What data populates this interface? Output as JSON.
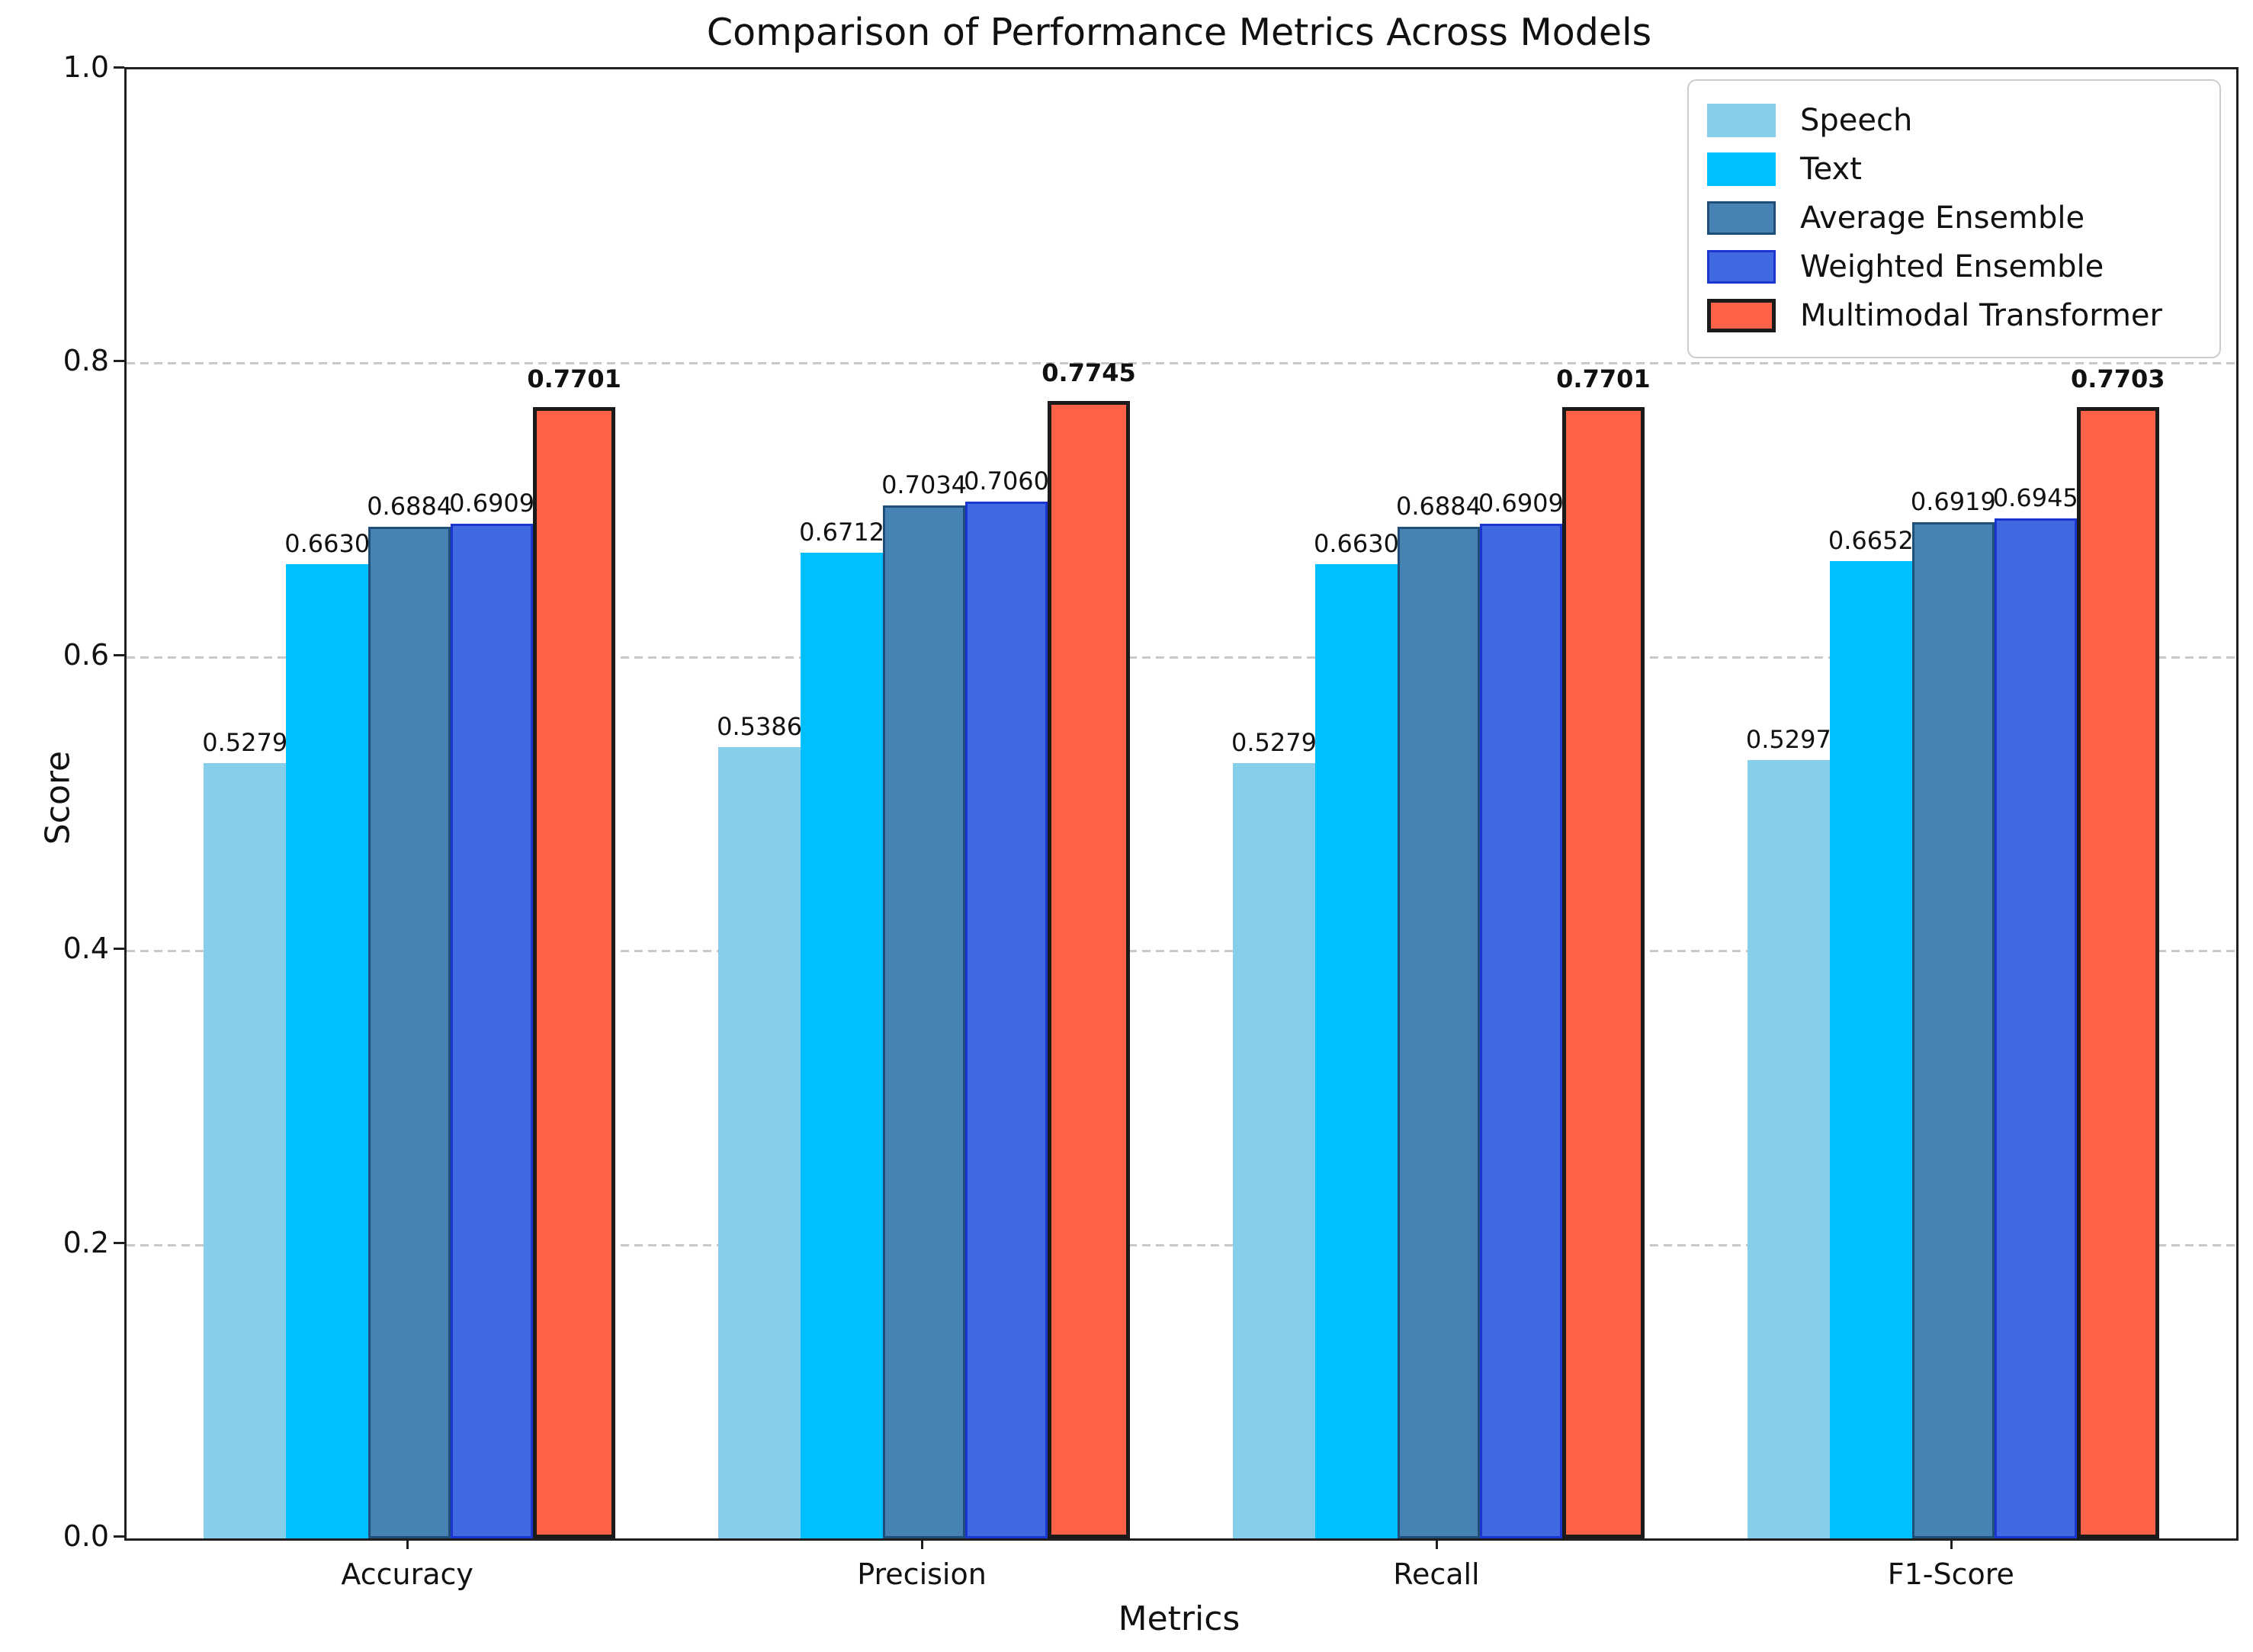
{
  "chart_data": {
    "type": "bar",
    "title": "Comparison of Performance Metrics Across Models",
    "xlabel": "Metrics",
    "ylabel": "Score",
    "categories": [
      "Accuracy",
      "Precision",
      "Recall",
      "F1-Score"
    ],
    "series": [
      {
        "name": "Speech",
        "color": "#87CEEB",
        "edge_color": "",
        "edge_width": 0,
        "bold_labels": false,
        "values": [
          0.5279,
          0.5386,
          0.5279,
          0.5297
        ],
        "value_labels": [
          "0.5279",
          "0.5386",
          "0.5279",
          "0.5297"
        ]
      },
      {
        "name": "Text",
        "color": "#00BFFF",
        "edge_color": "",
        "edge_width": 0,
        "bold_labels": false,
        "values": [
          0.663,
          0.6712,
          0.663,
          0.6652
        ],
        "value_labels": [
          "0.6630",
          "0.6712",
          "0.6630",
          "0.6652"
        ]
      },
      {
        "name": "Average Ensemble",
        "color": "#4682B4",
        "edge_color": "#1f4e79",
        "edge_width": 3,
        "bold_labels": false,
        "values": [
          0.6884,
          0.7034,
          0.6884,
          0.6919
        ],
        "value_labels": [
          "0.6884",
          "0.7034",
          "0.6884",
          "0.6919"
        ]
      },
      {
        "name": "Weighted Ensemble",
        "color": "#4169E1",
        "edge_color": "#1b35cf",
        "edge_width": 3,
        "bold_labels": false,
        "values": [
          0.6909,
          0.706,
          0.6909,
          0.6945
        ],
        "value_labels": [
          "0.6909",
          "0.7060",
          "0.6909",
          "0.6945"
        ]
      },
      {
        "name": "Multimodal Transformer",
        "color": "#FF6347",
        "edge_color": "#1a1a1a",
        "edge_width": 5,
        "bold_labels": true,
        "values": [
          0.7701,
          0.7745,
          0.7701,
          0.7703
        ],
        "value_labels": [
          "0.7701",
          "0.7745",
          "0.7701",
          "0.7703"
        ]
      }
    ],
    "ylim": [
      0.0,
      1.0
    ],
    "yticks": [
      "0.0",
      "0.2",
      "0.4",
      "0.6",
      "0.8",
      "1.0"
    ],
    "grid": "horizontal dashed",
    "legend_position": "upper right"
  }
}
